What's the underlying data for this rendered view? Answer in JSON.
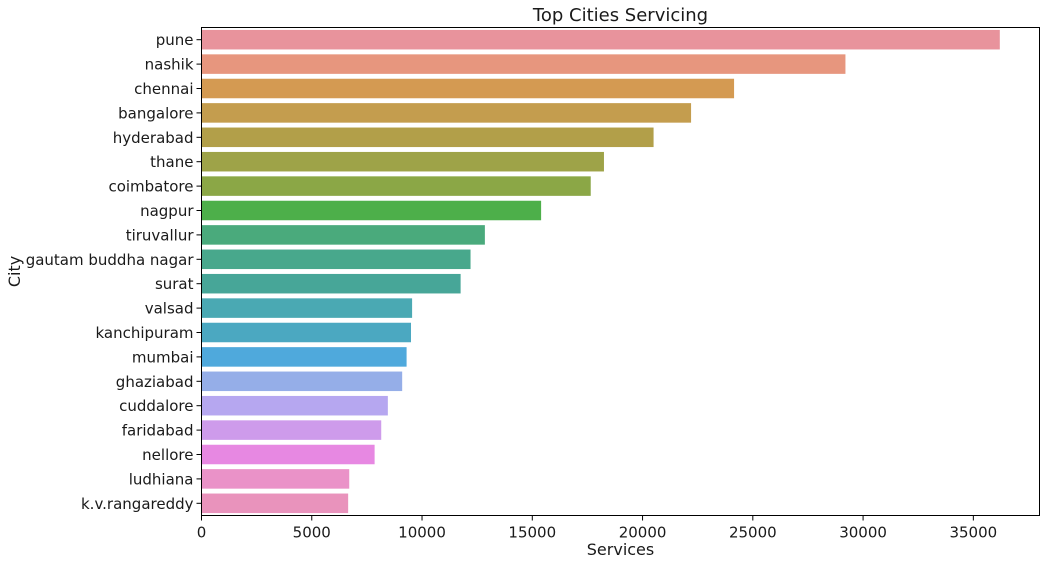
{
  "chart_data": {
    "type": "bar",
    "orientation": "horizontal",
    "title": "Top Cities Servicing",
    "xlabel": "Services",
    "ylabel": "City",
    "xlim": [
      0,
      38000
    ],
    "xticks": [
      0,
      5000,
      10000,
      15000,
      20000,
      25000,
      30000,
      35000
    ],
    "xtick_labels": [
      "0",
      "5000",
      "10000",
      "15000",
      "20000",
      "25000",
      "30000",
      "35000"
    ],
    "grid": false,
    "categories": [
      "pune",
      "nashik",
      "chennai",
      "bangalore",
      "hyderabad",
      "thane",
      "coimbatore",
      "nagpur",
      "tiruvallur",
      "gautam buddha nagar",
      "surat",
      "valsad",
      "kanchipuram",
      "mumbai",
      "ghaziabad",
      "cuddalore",
      "faridabad",
      "nellore",
      "ludhiana",
      "k.v.rangareddy"
    ],
    "values": [
      36200,
      29200,
      24150,
      22200,
      20500,
      18250,
      17650,
      15400,
      12850,
      12200,
      11750,
      9550,
      9500,
      9300,
      9100,
      8450,
      8150,
      7850,
      6700,
      6650
    ],
    "colors": [
      "#e8939c",
      "#e7967e",
      "#d49a52",
      "#c49d4e",
      "#b29f49",
      "#9ea348",
      "#8ba746",
      "#4daf4a",
      "#4aaa7c",
      "#48a88c",
      "#47a698",
      "#4aa9b3",
      "#4ba8c1",
      "#4fa9dc",
      "#95aee8",
      "#b6a7f0",
      "#ce9beb",
      "#e788e2",
      "#ea92c8",
      "#e993bc"
    ]
  }
}
